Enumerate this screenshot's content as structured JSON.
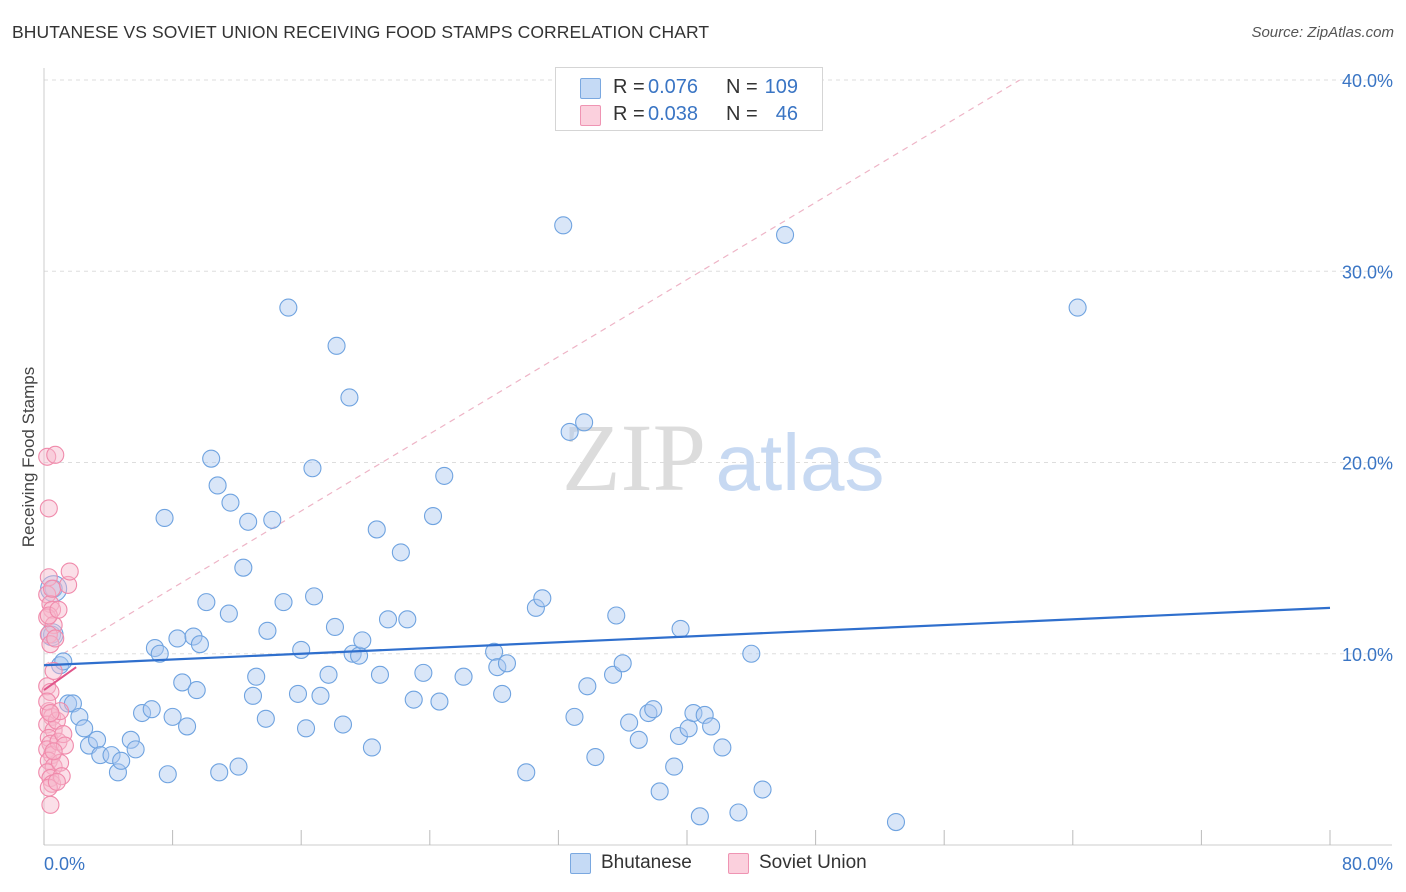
{
  "title": "BHUTANESE VS SOVIET UNION RECEIVING FOOD STAMPS CORRELATION CHART",
  "source": "Source: ZipAtlas.com",
  "watermark": {
    "zip": "ZIP",
    "atlas": "atlas"
  },
  "legend": {
    "rows": [
      {
        "r_label": "R =",
        "r_value": "0.076",
        "n_label": "N =",
        "n_value": "109",
        "color": "#a9c8f0"
      },
      {
        "r_label": "R =",
        "r_value": "0.038",
        "n_label": "N =",
        "n_value": "46",
        "color": "#f7b8cb"
      }
    ]
  },
  "chart_data": {
    "type": "scatter",
    "title": "BHUTANESE VS SOVIET UNION RECEIVING FOOD STAMPS CORRELATION CHART",
    "xlabel": "",
    "ylabel": "Receiving Food Stamps",
    "xlim": [
      0,
      80
    ],
    "ylim": [
      0,
      40
    ],
    "x_tick_labels": [
      "0.0%",
      "80.0%"
    ],
    "y_ticks": [
      10,
      20,
      30,
      40
    ],
    "y_tick_labels": [
      "10.0%",
      "20.0%",
      "30.0%",
      "40.0%"
    ],
    "grid": true,
    "legend_position": "top-center",
    "series": [
      {
        "name": "Bhutanese",
        "color": "#6fa3e0",
        "trend": {
          "x": [
            0,
            80
          ],
          "y": [
            9.4,
            12.4
          ],
          "color": "#2f6fcd"
        },
        "points": [
          [
            0.5,
            11.0
          ],
          [
            0.6,
            13.4
          ],
          [
            1.0,
            9.4
          ],
          [
            1.2,
            9.6
          ],
          [
            1.5,
            7.4
          ],
          [
            1.8,
            7.4
          ],
          [
            2.2,
            6.7
          ],
          [
            2.5,
            6.1
          ],
          [
            2.8,
            5.2
          ],
          [
            3.3,
            5.5
          ],
          [
            3.5,
            4.7
          ],
          [
            4.2,
            4.7
          ],
          [
            4.6,
            3.8
          ],
          [
            4.8,
            4.4
          ],
          [
            5.4,
            5.5
          ],
          [
            5.7,
            5.0
          ],
          [
            6.1,
            6.9
          ],
          [
            6.7,
            7.1
          ],
          [
            6.9,
            10.3
          ],
          [
            7.2,
            10.0
          ],
          [
            7.5,
            17.1
          ],
          [
            7.7,
            3.7
          ],
          [
            8.0,
            6.7
          ],
          [
            8.3,
            10.8
          ],
          [
            8.6,
            8.5
          ],
          [
            8.9,
            6.2
          ],
          [
            9.3,
            10.9
          ],
          [
            9.5,
            8.1
          ],
          [
            9.7,
            10.5
          ],
          [
            10.1,
            12.7
          ],
          [
            10.4,
            20.2
          ],
          [
            10.8,
            18.8
          ],
          [
            10.9,
            3.8
          ],
          [
            11.5,
            12.1
          ],
          [
            11.6,
            17.9
          ],
          [
            12.1,
            4.1
          ],
          [
            12.4,
            14.5
          ],
          [
            12.7,
            16.9
          ],
          [
            13.0,
            7.8
          ],
          [
            13.2,
            8.8
          ],
          [
            13.8,
            6.6
          ],
          [
            13.9,
            11.2
          ],
          [
            14.2,
            17.0
          ],
          [
            14.9,
            12.7
          ],
          [
            15.2,
            28.1
          ],
          [
            15.8,
            7.9
          ],
          [
            16.0,
            10.2
          ],
          [
            16.3,
            6.1
          ],
          [
            16.7,
            19.7
          ],
          [
            16.8,
            13.0
          ],
          [
            17.2,
            7.8
          ],
          [
            17.7,
            8.9
          ],
          [
            18.1,
            11.4
          ],
          [
            18.2,
            26.1
          ],
          [
            18.6,
            6.3
          ],
          [
            19.0,
            23.4
          ],
          [
            19.2,
            10.0
          ],
          [
            19.6,
            9.9
          ],
          [
            19.8,
            10.7
          ],
          [
            20.4,
            5.1
          ],
          [
            20.7,
            16.5
          ],
          [
            20.9,
            8.9
          ],
          [
            21.4,
            11.8
          ],
          [
            22.2,
            15.3
          ],
          [
            22.6,
            11.8
          ],
          [
            23.0,
            7.6
          ],
          [
            23.6,
            9.0
          ],
          [
            24.2,
            17.2
          ],
          [
            24.6,
            7.5
          ],
          [
            24.9,
            19.3
          ],
          [
            26.1,
            8.8
          ],
          [
            28.0,
            10.1
          ],
          [
            28.2,
            9.3
          ],
          [
            28.5,
            7.9
          ],
          [
            28.8,
            9.5
          ],
          [
            30.0,
            3.8
          ],
          [
            30.6,
            12.4
          ],
          [
            31.0,
            12.9
          ],
          [
            32.3,
            32.4
          ],
          [
            32.7,
            21.6
          ],
          [
            33.0,
            6.7
          ],
          [
            33.6,
            22.1
          ],
          [
            33.8,
            8.3
          ],
          [
            34.3,
            4.6
          ],
          [
            35.4,
            8.9
          ],
          [
            35.6,
            12.0
          ],
          [
            36.0,
            9.5
          ],
          [
            36.4,
            6.4
          ],
          [
            37.0,
            5.5
          ],
          [
            37.6,
            6.9
          ],
          [
            37.9,
            7.1
          ],
          [
            38.3,
            2.8
          ],
          [
            39.2,
            4.1
          ],
          [
            39.5,
            5.7
          ],
          [
            39.6,
            11.3
          ],
          [
            40.1,
            6.1
          ],
          [
            40.4,
            6.9
          ],
          [
            40.8,
            1.5
          ],
          [
            41.1,
            6.8
          ],
          [
            41.5,
            6.2
          ],
          [
            42.2,
            5.1
          ],
          [
            43.2,
            1.7
          ],
          [
            44.0,
            10.0
          ],
          [
            44.7,
            2.9
          ],
          [
            46.1,
            31.9
          ],
          [
            53.0,
            1.2
          ],
          [
            64.3,
            28.1
          ]
        ]
      },
      {
        "name": "Soviet Union",
        "color": "#f08aab",
        "trend": {
          "x": [
            0,
            2.0
          ],
          "y": [
            8.1,
            9.3
          ],
          "color": "#e0558a"
        },
        "points": [
          [
            0.2,
            20.3
          ],
          [
            0.3,
            17.6
          ],
          [
            0.3,
            14.0
          ],
          [
            0.2,
            13.1
          ],
          [
            0.4,
            12.6
          ],
          [
            0.5,
            12.3
          ],
          [
            0.2,
            11.9
          ],
          [
            0.6,
            11.5
          ],
          [
            0.3,
            11.0
          ],
          [
            0.4,
            10.5
          ],
          [
            0.2,
            8.3
          ],
          [
            0.4,
            8.0
          ],
          [
            0.3,
            7.0
          ],
          [
            0.5,
            6.7
          ],
          [
            0.2,
            6.3
          ],
          [
            0.6,
            6.0
          ],
          [
            0.3,
            5.6
          ],
          [
            0.4,
            5.3
          ],
          [
            0.2,
            5.0
          ],
          [
            0.5,
            4.7
          ],
          [
            0.3,
            4.4
          ],
          [
            0.6,
            4.1
          ],
          [
            0.2,
            3.8
          ],
          [
            0.4,
            3.5
          ],
          [
            0.5,
            3.2
          ],
          [
            0.3,
            3.0
          ],
          [
            0.4,
            2.1
          ],
          [
            0.2,
            7.5
          ],
          [
            0.6,
            9.1
          ],
          [
            0.3,
            12.0
          ],
          [
            0.5,
            13.4
          ],
          [
            0.7,
            10.8
          ],
          [
            0.8,
            6.5
          ],
          [
            0.9,
            5.4
          ],
          [
            1.0,
            4.3
          ],
          [
            1.1,
            3.6
          ],
          [
            0.8,
            3.3
          ],
          [
            1.2,
            5.8
          ],
          [
            1.3,
            5.2
          ],
          [
            1.5,
            13.6
          ],
          [
            1.6,
            14.3
          ],
          [
            0.7,
            20.4
          ],
          [
            0.9,
            12.3
          ],
          [
            1.0,
            7.0
          ],
          [
            0.6,
            4.9
          ],
          [
            0.4,
            6.9
          ]
        ]
      }
    ]
  },
  "bottom_legend": [
    {
      "label": "Bhutanese",
      "color": "#a9c8f0"
    },
    {
      "label": "Soviet Union",
      "color": "#f7b8cb"
    }
  ]
}
